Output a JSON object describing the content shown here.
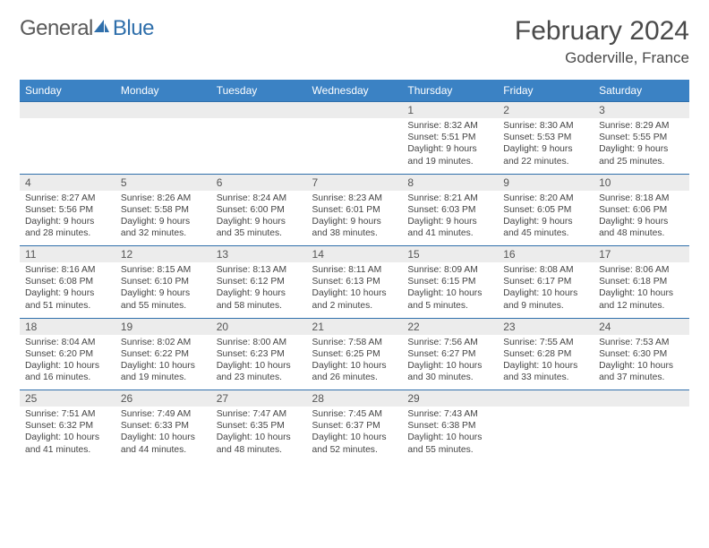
{
  "logo": {
    "textGeneral": "General",
    "textBlue": "Blue"
  },
  "title": "February 2024",
  "location": "Goderville, France",
  "colors": {
    "headerBg": "#3b82c4",
    "headerBorder": "#2f6fab",
    "dayNumBg": "#ececec",
    "textDark": "#4a4a4a",
    "bodyText": "#444444"
  },
  "dayHeaders": [
    "Sunday",
    "Monday",
    "Tuesday",
    "Wednesday",
    "Thursday",
    "Friday",
    "Saturday"
  ],
  "weeks": [
    [
      {
        "n": "",
        "sunrise": "",
        "sunset": "",
        "daylight": ""
      },
      {
        "n": "",
        "sunrise": "",
        "sunset": "",
        "daylight": ""
      },
      {
        "n": "",
        "sunrise": "",
        "sunset": "",
        "daylight": ""
      },
      {
        "n": "",
        "sunrise": "",
        "sunset": "",
        "daylight": ""
      },
      {
        "n": "1",
        "sunrise": "Sunrise: 8:32 AM",
        "sunset": "Sunset: 5:51 PM",
        "daylight": "Daylight: 9 hours and 19 minutes."
      },
      {
        "n": "2",
        "sunrise": "Sunrise: 8:30 AM",
        "sunset": "Sunset: 5:53 PM",
        "daylight": "Daylight: 9 hours and 22 minutes."
      },
      {
        "n": "3",
        "sunrise": "Sunrise: 8:29 AM",
        "sunset": "Sunset: 5:55 PM",
        "daylight": "Daylight: 9 hours and 25 minutes."
      }
    ],
    [
      {
        "n": "4",
        "sunrise": "Sunrise: 8:27 AM",
        "sunset": "Sunset: 5:56 PM",
        "daylight": "Daylight: 9 hours and 28 minutes."
      },
      {
        "n": "5",
        "sunrise": "Sunrise: 8:26 AM",
        "sunset": "Sunset: 5:58 PM",
        "daylight": "Daylight: 9 hours and 32 minutes."
      },
      {
        "n": "6",
        "sunrise": "Sunrise: 8:24 AM",
        "sunset": "Sunset: 6:00 PM",
        "daylight": "Daylight: 9 hours and 35 minutes."
      },
      {
        "n": "7",
        "sunrise": "Sunrise: 8:23 AM",
        "sunset": "Sunset: 6:01 PM",
        "daylight": "Daylight: 9 hours and 38 minutes."
      },
      {
        "n": "8",
        "sunrise": "Sunrise: 8:21 AM",
        "sunset": "Sunset: 6:03 PM",
        "daylight": "Daylight: 9 hours and 41 minutes."
      },
      {
        "n": "9",
        "sunrise": "Sunrise: 8:20 AM",
        "sunset": "Sunset: 6:05 PM",
        "daylight": "Daylight: 9 hours and 45 minutes."
      },
      {
        "n": "10",
        "sunrise": "Sunrise: 8:18 AM",
        "sunset": "Sunset: 6:06 PM",
        "daylight": "Daylight: 9 hours and 48 minutes."
      }
    ],
    [
      {
        "n": "11",
        "sunrise": "Sunrise: 8:16 AM",
        "sunset": "Sunset: 6:08 PM",
        "daylight": "Daylight: 9 hours and 51 minutes."
      },
      {
        "n": "12",
        "sunrise": "Sunrise: 8:15 AM",
        "sunset": "Sunset: 6:10 PM",
        "daylight": "Daylight: 9 hours and 55 minutes."
      },
      {
        "n": "13",
        "sunrise": "Sunrise: 8:13 AM",
        "sunset": "Sunset: 6:12 PM",
        "daylight": "Daylight: 9 hours and 58 minutes."
      },
      {
        "n": "14",
        "sunrise": "Sunrise: 8:11 AM",
        "sunset": "Sunset: 6:13 PM",
        "daylight": "Daylight: 10 hours and 2 minutes."
      },
      {
        "n": "15",
        "sunrise": "Sunrise: 8:09 AM",
        "sunset": "Sunset: 6:15 PM",
        "daylight": "Daylight: 10 hours and 5 minutes."
      },
      {
        "n": "16",
        "sunrise": "Sunrise: 8:08 AM",
        "sunset": "Sunset: 6:17 PM",
        "daylight": "Daylight: 10 hours and 9 minutes."
      },
      {
        "n": "17",
        "sunrise": "Sunrise: 8:06 AM",
        "sunset": "Sunset: 6:18 PM",
        "daylight": "Daylight: 10 hours and 12 minutes."
      }
    ],
    [
      {
        "n": "18",
        "sunrise": "Sunrise: 8:04 AM",
        "sunset": "Sunset: 6:20 PM",
        "daylight": "Daylight: 10 hours and 16 minutes."
      },
      {
        "n": "19",
        "sunrise": "Sunrise: 8:02 AM",
        "sunset": "Sunset: 6:22 PM",
        "daylight": "Daylight: 10 hours and 19 minutes."
      },
      {
        "n": "20",
        "sunrise": "Sunrise: 8:00 AM",
        "sunset": "Sunset: 6:23 PM",
        "daylight": "Daylight: 10 hours and 23 minutes."
      },
      {
        "n": "21",
        "sunrise": "Sunrise: 7:58 AM",
        "sunset": "Sunset: 6:25 PM",
        "daylight": "Daylight: 10 hours and 26 minutes."
      },
      {
        "n": "22",
        "sunrise": "Sunrise: 7:56 AM",
        "sunset": "Sunset: 6:27 PM",
        "daylight": "Daylight: 10 hours and 30 minutes."
      },
      {
        "n": "23",
        "sunrise": "Sunrise: 7:55 AM",
        "sunset": "Sunset: 6:28 PM",
        "daylight": "Daylight: 10 hours and 33 minutes."
      },
      {
        "n": "24",
        "sunrise": "Sunrise: 7:53 AM",
        "sunset": "Sunset: 6:30 PM",
        "daylight": "Daylight: 10 hours and 37 minutes."
      }
    ],
    [
      {
        "n": "25",
        "sunrise": "Sunrise: 7:51 AM",
        "sunset": "Sunset: 6:32 PM",
        "daylight": "Daylight: 10 hours and 41 minutes."
      },
      {
        "n": "26",
        "sunrise": "Sunrise: 7:49 AM",
        "sunset": "Sunset: 6:33 PM",
        "daylight": "Daylight: 10 hours and 44 minutes."
      },
      {
        "n": "27",
        "sunrise": "Sunrise: 7:47 AM",
        "sunset": "Sunset: 6:35 PM",
        "daylight": "Daylight: 10 hours and 48 minutes."
      },
      {
        "n": "28",
        "sunrise": "Sunrise: 7:45 AM",
        "sunset": "Sunset: 6:37 PM",
        "daylight": "Daylight: 10 hours and 52 minutes."
      },
      {
        "n": "29",
        "sunrise": "Sunrise: 7:43 AM",
        "sunset": "Sunset: 6:38 PM",
        "daylight": "Daylight: 10 hours and 55 minutes."
      },
      {
        "n": "",
        "sunrise": "",
        "sunset": "",
        "daylight": ""
      },
      {
        "n": "",
        "sunrise": "",
        "sunset": "",
        "daylight": ""
      }
    ]
  ]
}
